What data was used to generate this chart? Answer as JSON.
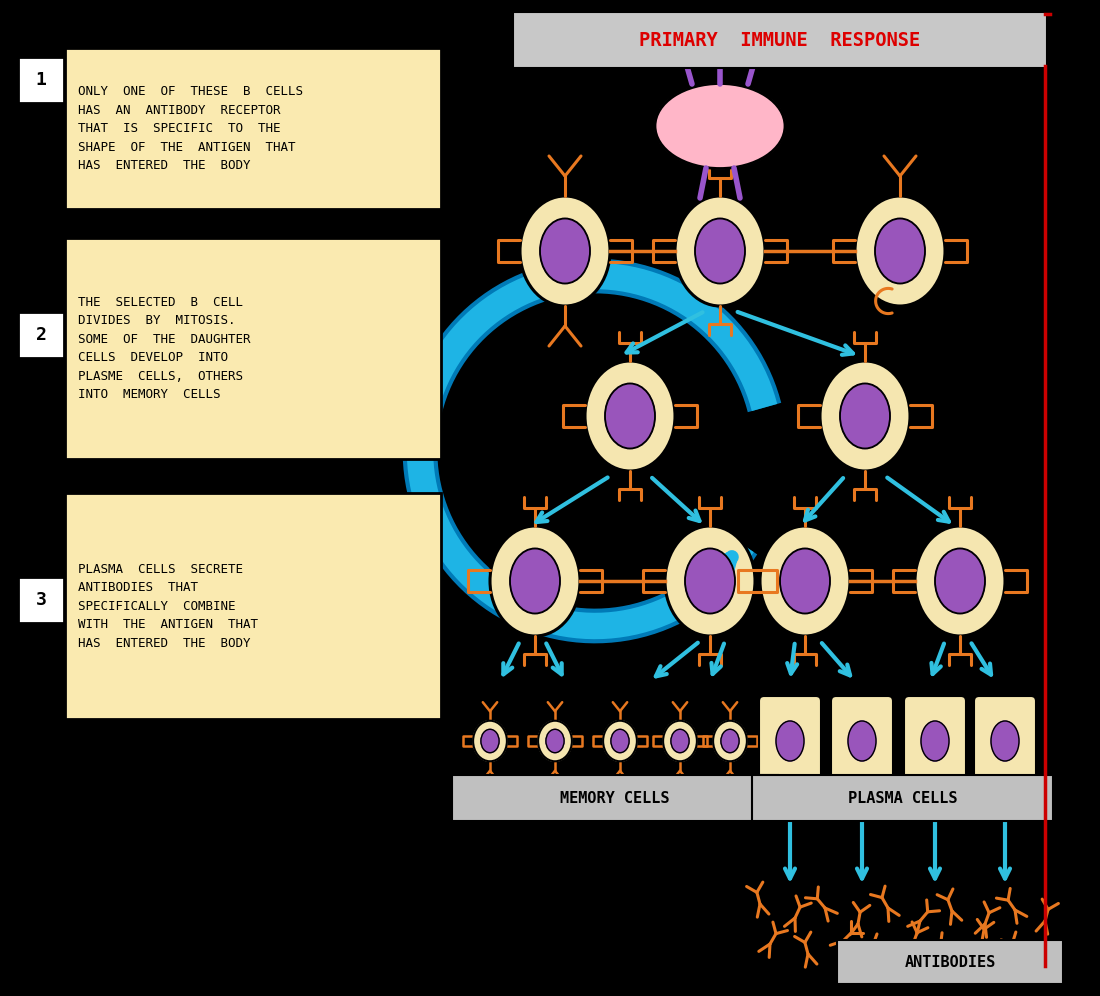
{
  "bg_color": "#000000",
  "title_text": "PRIMARY  IMMUNE  RESPONSE",
  "title_box_color": "#c8c8c8",
  "title_text_color": "#dd0000",
  "red_border_color": "#cc0000",
  "antigen_color": "#ffb6c8",
  "antigen_spike_color": "#9955cc",
  "cell_outer_color": "#f5e6b0",
  "cell_inner_color": "#9955bb",
  "receptor_color": "#e87820",
  "arrow_color": "#30c0e0",
  "label_box_color": "#faeab0",
  "label_text_color": "#000000",
  "memory_label_box": "#c0c0c0",
  "plasma_label_box": "#c0c0c0",
  "antibodies_label_box": "#c0c0c0",
  "memory_label": "MEMORY CELLS",
  "plasma_label": "PLASMA CELLS",
  "antibodies_label": "ANTIBODIES",
  "label1_num": "1",
  "label1_text": "ONLY  ONE  OF  THESE  B  CELLS\nHAS  AN  ANTIBODY  RECEPTOR\nTHAT  IS  SPECIFIC  TO  THE\nSHAPE  OF  THE  ANTIGEN  THAT\nHAS  ENTERED  THE  BODY",
  "label2_num": "2",
  "label2_text": "THE  SELECTED  B  CELL\nDIVIDES  BY  MITOSIS.\nSOME  OF  THE  DAUGHTER\nCELLS  DEVELOP  INTO\nPLASME  CELLS,  OTHERS\nINTO  MEMORY  CELLS",
  "label3_num": "3",
  "label3_text": "PLASMA  CELLS  SECRETE\nANTIBODIES  THAT\nSPECIFICALLY  COMBINE\nWITH  THE  ANTIGEN  THAT\nHAS  ENTERED  THE  BODY"
}
